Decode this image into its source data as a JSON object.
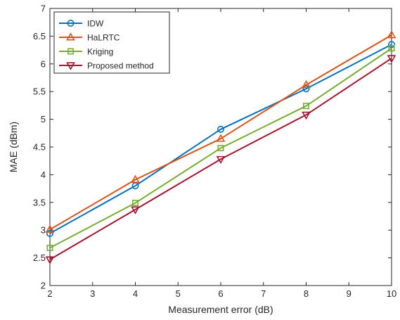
{
  "chart_data": {
    "type": "line",
    "title": "",
    "xlabel": "Measurement error (dB)",
    "ylabel": "MAE (dBm)",
    "xlim": [
      2,
      10
    ],
    "ylim": [
      2,
      7
    ],
    "x_ticks": [
      "2",
      "3",
      "4",
      "5",
      "6",
      "7",
      "8",
      "9",
      "10"
    ],
    "y_ticks": [
      "2",
      "2.5",
      "3",
      "3.5",
      "4",
      "4.5",
      "5",
      "5.5",
      "6",
      "6.5",
      "7"
    ],
    "grid": false,
    "legend_position": "top-left",
    "x": [
      2,
      4,
      6,
      8,
      10
    ],
    "series": [
      {
        "name": "IDW",
        "values": [
          2.94,
          3.8,
          4.82,
          5.55,
          6.35
        ],
        "color": "#0072BD",
        "marker": "circle"
      },
      {
        "name": "HaLRTC",
        "values": [
          3.01,
          3.91,
          4.65,
          5.62,
          6.52
        ],
        "color": "#D95319",
        "marker": "triangle-up"
      },
      {
        "name": "Kriging",
        "values": [
          2.68,
          3.49,
          4.48,
          5.24,
          6.28
        ],
        "color": "#77AC30",
        "marker": "square"
      },
      {
        "name": "Proposed method",
        "values": [
          2.47,
          3.37,
          4.28,
          5.08,
          6.1
        ],
        "color": "#A2142F",
        "marker": "triangle-down"
      }
    ]
  }
}
